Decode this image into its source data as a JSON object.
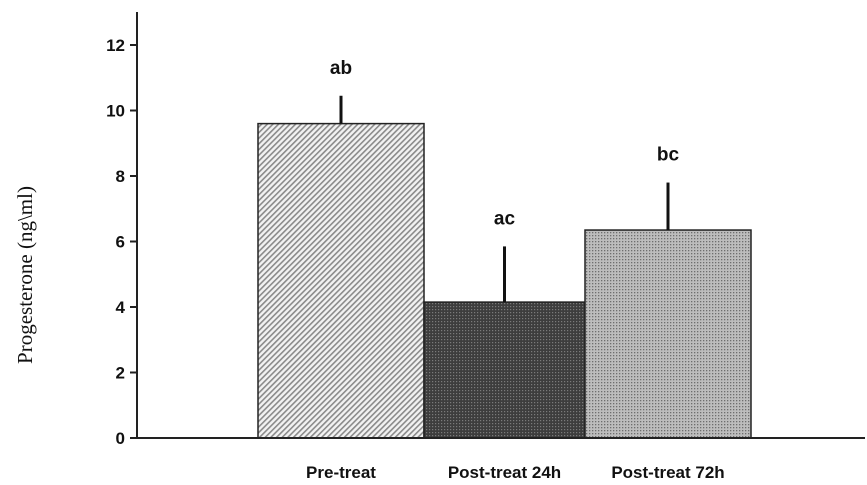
{
  "chart_data": {
    "type": "bar",
    "categories": [
      "Pre-treat",
      "Post-treat 24h",
      "Post-treat 72h"
    ],
    "values": [
      9.6,
      4.15,
      6.35
    ],
    "error_upper": [
      10.45,
      5.85,
      7.8
    ],
    "significance_labels": [
      "ab",
      "ac",
      "bc"
    ],
    "title": "",
    "xlabel": "",
    "ylabel": "Progesterone (ng\\ml)",
    "ylim": [
      0,
      12
    ],
    "yticks": [
      0,
      2,
      4,
      6,
      8,
      10,
      12
    ],
    "grid": false,
    "legend": "none",
    "bar_patterns": [
      "diagonal-light",
      "dense-dark",
      "dots-medium"
    ],
    "colors": {
      "axis": "#222222",
      "bar_outline": "#222222",
      "light": "#d8d8d8",
      "dark": "#4a4a4a",
      "medium": "#a9a9a9"
    }
  }
}
